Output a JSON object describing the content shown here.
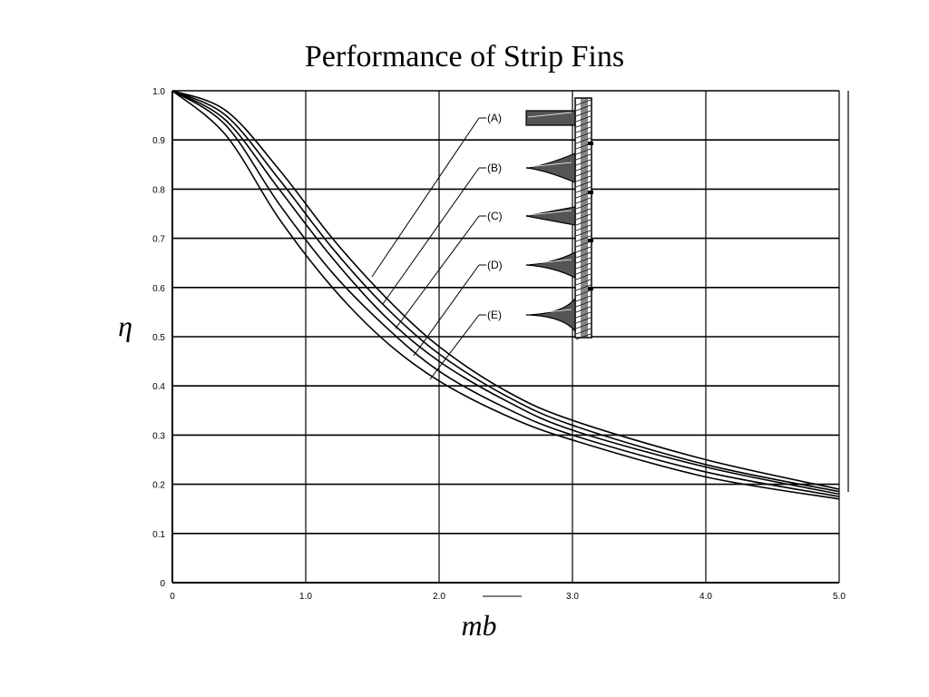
{
  "title": "Performance of Strip Fins",
  "chart_data": {
    "type": "line",
    "title": "Performance of Strip Fins",
    "xlabel": "mb",
    "ylabel": "η",
    "xlim": [
      0,
      5
    ],
    "ylim": [
      0,
      1
    ],
    "x_ticks": [
      "0",
      "1.0",
      "2.0",
      "3.0",
      "4.0",
      "5.0"
    ],
    "y_ticks": [
      "0",
      "0.1",
      "0.2",
      "0.3",
      "0.4",
      "0.5",
      "0.6",
      "0.7",
      "0.8",
      "0.9",
      "1.0"
    ],
    "grid": true,
    "series": [
      {
        "name": "(A)",
        "x": [
          0,
          0.4,
          0.8,
          1.2,
          1.6,
          2.0,
          2.5,
          3.0,
          4.0,
          5.0
        ],
        "values": [
          1.0,
          0.96,
          0.84,
          0.7,
          0.58,
          0.48,
          0.39,
          0.33,
          0.25,
          0.19
        ]
      },
      {
        "name": "(B)",
        "x": [
          0,
          0.4,
          0.8,
          1.2,
          1.6,
          2.0,
          2.5,
          3.0,
          4.0,
          5.0
        ],
        "values": [
          1.0,
          0.95,
          0.82,
          0.68,
          0.56,
          0.465,
          0.38,
          0.32,
          0.24,
          0.185
        ]
      },
      {
        "name": "(C)",
        "x": [
          0,
          0.4,
          0.8,
          1.2,
          1.6,
          2.0,
          2.5,
          3.0,
          4.0,
          5.0
        ],
        "values": [
          1.0,
          0.94,
          0.8,
          0.66,
          0.54,
          0.45,
          0.37,
          0.31,
          0.235,
          0.18
        ]
      },
      {
        "name": "(D)",
        "x": [
          0,
          0.4,
          0.8,
          1.2,
          1.6,
          2.0,
          2.5,
          3.0,
          4.0,
          5.0
        ],
        "values": [
          1.0,
          0.93,
          0.77,
          0.63,
          0.52,
          0.43,
          0.355,
          0.3,
          0.225,
          0.175
        ]
      },
      {
        "name": "(E)",
        "x": [
          0,
          0.4,
          0.8,
          1.2,
          1.6,
          2.0,
          2.5,
          3.0,
          4.0,
          5.0
        ],
        "values": [
          1.0,
          0.91,
          0.74,
          0.6,
          0.49,
          0.41,
          0.34,
          0.29,
          0.215,
          0.17
        ]
      }
    ]
  }
}
